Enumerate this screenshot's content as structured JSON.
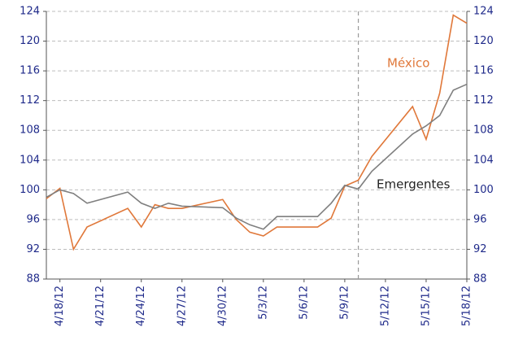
{
  "chart_data": {
    "type": "line",
    "x": [
      "4/17/12",
      "4/18/12",
      "4/19/12",
      "4/20/12",
      "4/23/12",
      "4/24/12",
      "4/25/12",
      "4/26/12",
      "4/27/12",
      "4/30/12",
      "5/1/12",
      "5/2/12",
      "5/3/12",
      "5/4/12",
      "5/7/12",
      "5/8/12",
      "5/9/12",
      "5/10/12",
      "5/11/12",
      "5/14/12",
      "5/15/12",
      "5/16/12",
      "5/17/12",
      "5/18/12"
    ],
    "series": [
      {
        "name": "México",
        "color": "#e0783a",
        "values": [
          98.8,
          100.2,
          92,
          95,
          97.5,
          95,
          98,
          97.5,
          97.5,
          98.7,
          96,
          94.3,
          93.8,
          95,
          95,
          96.2,
          100.5,
          101.3,
          104.5,
          111.2,
          106.8,
          113,
          123.5,
          122.4
        ]
      },
      {
        "name": "Emergentes",
        "color": "#7f7f7f",
        "values": [
          99,
          100,
          99.5,
          98.2,
          99.7,
          98.2,
          97.5,
          98.2,
          97.8,
          97.6,
          96.2,
          95.3,
          94.7,
          96.4,
          96.4,
          98.2,
          100.6,
          100.1,
          102.5,
          107.5,
          108.6,
          110,
          113.4,
          114.2
        ]
      }
    ],
    "xlim": [
      "4/17/12",
      "5/18/12"
    ],
    "xticks": [
      "4/18/12",
      "4/21/12",
      "4/24/12",
      "4/27/12",
      "4/30/12",
      "5/3/12",
      "5/6/12",
      "5/9/12",
      "5/12/12",
      "5/15/12",
      "5/18/12"
    ],
    "ylim": [
      88,
      124
    ],
    "yticks": [
      88,
      92,
      96,
      100,
      104,
      108,
      112,
      116,
      120,
      124
    ],
    "y2lim": [
      88,
      124
    ],
    "y2ticks": [
      88,
      92,
      96,
      100,
      104,
      108,
      112,
      116,
      120,
      124
    ],
    "vline": "5/10/12",
    "grid": true
  }
}
